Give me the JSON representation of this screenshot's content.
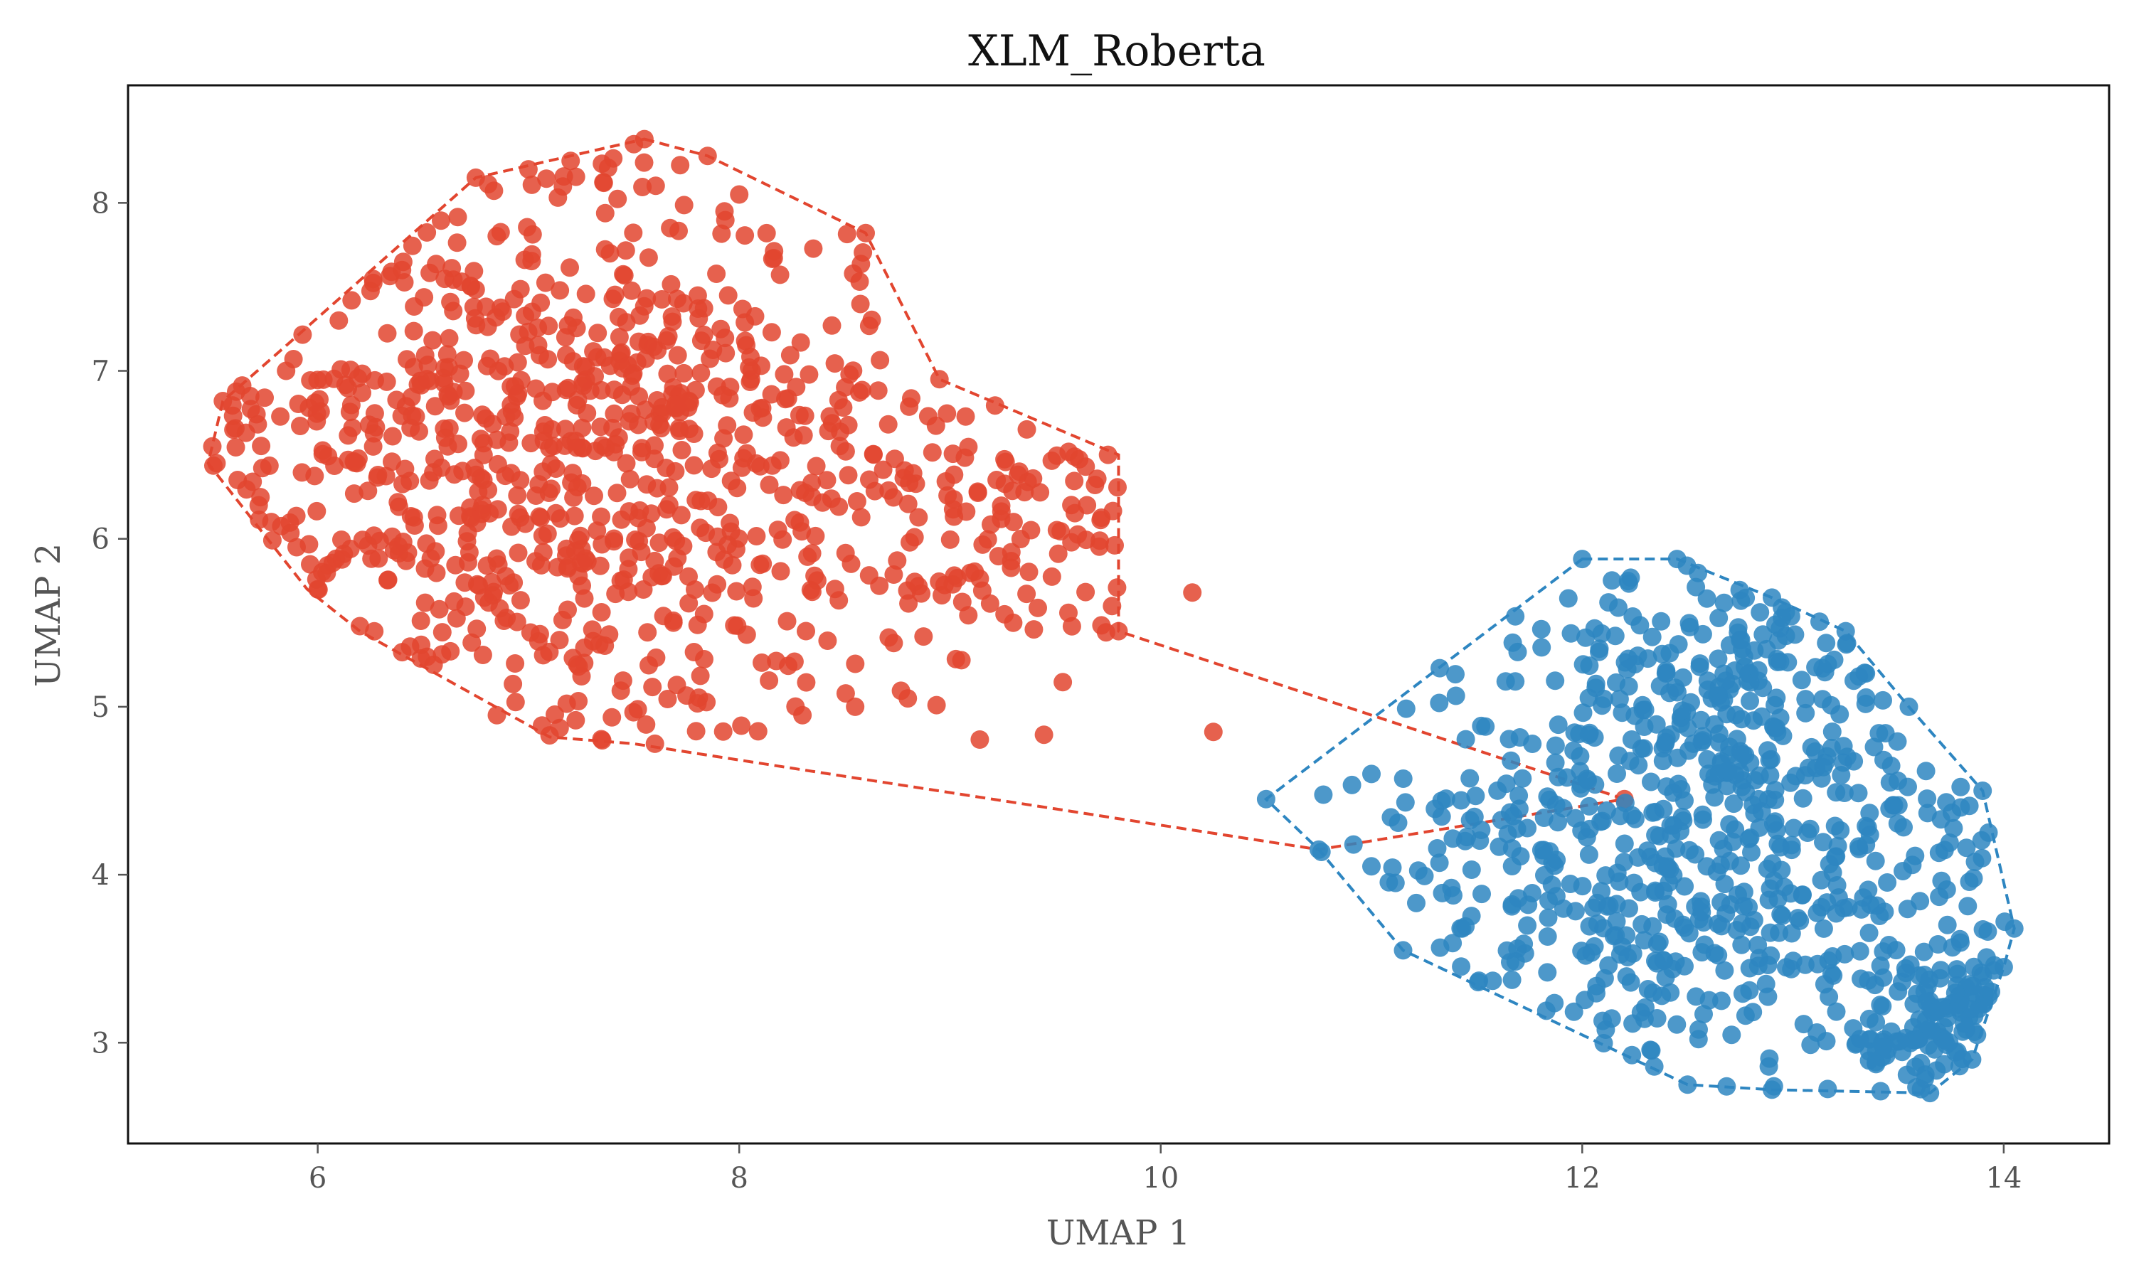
{
  "chart_data": {
    "type": "scatter",
    "title": "XLM_Roberta",
    "xlabel": "UMAP 1",
    "ylabel": "UMAP 2",
    "xlim": [
      5.1,
      14.5
    ],
    "ylim": [
      2.4,
      8.7
    ],
    "xticks": [
      6,
      8,
      10,
      12,
      14
    ],
    "yticks": [
      3,
      4,
      5,
      6,
      7,
      8
    ],
    "grid": false,
    "legend": "none",
    "marker_opacity": 0.85,
    "hull_style": "dashed",
    "series": [
      {
        "color": "#e2452f",
        "hull": [
          [
            7.55,
            8.38
          ],
          [
            7.85,
            8.28
          ],
          [
            8.6,
            7.82
          ],
          [
            8.95,
            6.95
          ],
          [
            9.8,
            6.5
          ],
          [
            9.8,
            5.45
          ],
          [
            12.2,
            4.45
          ],
          [
            10.75,
            4.15
          ],
          [
            7.5,
            4.78
          ],
          [
            7.1,
            4.82
          ],
          [
            6.2,
            5.45
          ],
          [
            5.95,
            5.7
          ],
          [
            5.48,
            6.45
          ],
          [
            5.55,
            6.82
          ],
          [
            5.85,
            7.15
          ],
          [
            6.75,
            8.15
          ],
          [
            7.2,
            8.28
          ]
        ],
        "clusters": [
          {
            "cx": 7.2,
            "cy": 6.55,
            "sx": 0.95,
            "sy": 0.9,
            "n": 820,
            "xmin": 5.5,
            "xmax": 9.8,
            "ymin": 4.8,
            "ymax": 8.38
          },
          {
            "cx": 9.35,
            "cy": 6.2,
            "sx": 0.35,
            "sy": 0.5,
            "n": 90,
            "xmin": 8.6,
            "xmax": 9.8,
            "ymin": 5.4,
            "ymax": 6.55
          }
        ],
        "points": [
          [
            5.5,
            6.55
          ],
          [
            5.52,
            6.45
          ],
          [
            5.55,
            6.82
          ],
          [
            5.6,
            6.65
          ],
          [
            5.62,
            6.35
          ],
          [
            5.68,
            6.85
          ],
          [
            5.72,
            6.2
          ],
          [
            5.78,
            6.1
          ],
          [
            5.85,
            7.0
          ],
          [
            5.9,
            5.95
          ],
          [
            6.0,
            5.7
          ],
          [
            6.1,
            7.3
          ],
          [
            6.2,
            5.48
          ],
          [
            6.4,
            7.6
          ],
          [
            6.55,
            5.25
          ],
          [
            6.75,
            8.15
          ],
          [
            6.85,
            4.95
          ],
          [
            7.0,
            8.2
          ],
          [
            7.1,
            4.83
          ],
          [
            7.2,
            8.25
          ],
          [
            7.35,
            4.8
          ],
          [
            7.5,
            8.35
          ],
          [
            7.55,
            8.38
          ],
          [
            7.6,
            4.78
          ],
          [
            7.85,
            8.28
          ],
          [
            8.0,
            8.05
          ],
          [
            8.3,
            4.95
          ],
          [
            8.6,
            7.82
          ],
          [
            8.55,
            5.0
          ],
          [
            8.95,
            6.95
          ],
          [
            8.8,
            5.05
          ],
          [
            9.3,
            5.5
          ],
          [
            9.75,
            6.5
          ],
          [
            9.8,
            5.45
          ],
          [
            9.65,
            6.2
          ],
          [
            10.15,
            5.68
          ],
          [
            10.25,
            4.85
          ],
          [
            12.2,
            4.45
          ]
        ]
      },
      {
        "color": "#2e86c1",
        "hull": [
          [
            12.0,
            5.88
          ],
          [
            12.45,
            5.88
          ],
          [
            12.9,
            5.65
          ],
          [
            13.25,
            5.45
          ],
          [
            13.55,
            5.0
          ],
          [
            13.9,
            4.5
          ],
          [
            14.05,
            3.68
          ],
          [
            14.0,
            3.45
          ],
          [
            13.85,
            2.9
          ],
          [
            13.65,
            2.7
          ],
          [
            12.9,
            2.72
          ],
          [
            12.5,
            2.75
          ],
          [
            11.15,
            3.55
          ],
          [
            10.75,
            4.15
          ],
          [
            10.5,
            4.45
          ]
        ],
        "clusters": [
          {
            "cx": 12.6,
            "cy": 4.1,
            "sx": 0.8,
            "sy": 0.75,
            "n": 600,
            "xmin": 10.55,
            "xmax": 14.05,
            "ymin": 2.7,
            "ymax": 5.88
          },
          {
            "cx": 13.75,
            "cy": 3.15,
            "sx": 0.2,
            "sy": 0.25,
            "n": 110,
            "xmin": 13.3,
            "xmax": 14.05,
            "ymin": 2.7,
            "ymax": 3.7
          },
          {
            "cx": 12.75,
            "cy": 5.2,
            "sx": 0.35,
            "sy": 0.35,
            "n": 120,
            "xmin": 12.0,
            "xmax": 13.6,
            "ymin": 4.6,
            "ymax": 5.88
          }
        ],
        "points": [
          [
            10.5,
            4.45
          ],
          [
            10.75,
            4.15
          ],
          [
            11.15,
            3.55
          ],
          [
            12.0,
            5.88
          ],
          [
            12.45,
            5.88
          ],
          [
            12.9,
            5.65
          ],
          [
            13.25,
            5.45
          ],
          [
            13.55,
            5.0
          ],
          [
            13.9,
            4.5
          ],
          [
            14.05,
            3.68
          ],
          [
            14.0,
            3.45
          ],
          [
            13.85,
            2.9
          ],
          [
            13.65,
            2.7
          ],
          [
            12.9,
            2.72
          ],
          [
            12.5,
            2.75
          ],
          [
            11.0,
            4.05
          ],
          [
            11.0,
            4.6
          ]
        ]
      }
    ]
  }
}
